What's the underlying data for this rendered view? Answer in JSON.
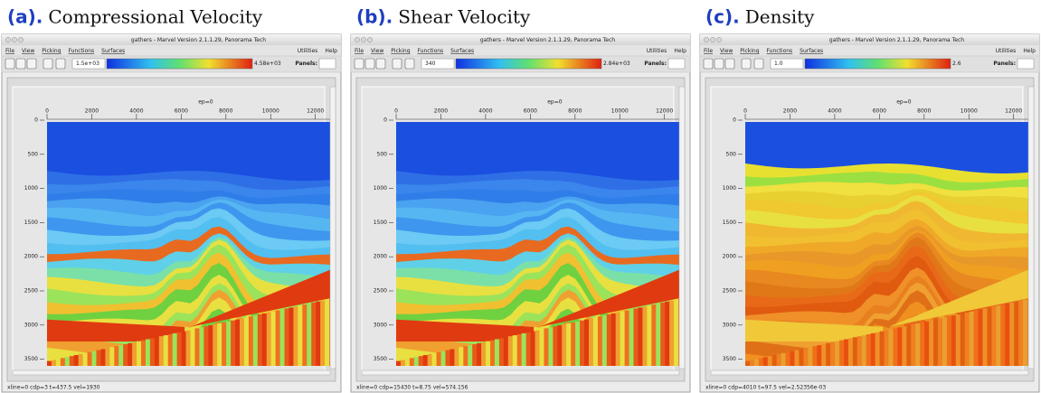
{
  "panels": [
    {
      "letter": "(a).",
      "title": "Compressional Velocity",
      "window_title": "gathers - Marvel Version 2.1.1.29, Panorama Tech",
      "menu": [
        "File",
        "View",
        "Picking",
        "Functions",
        "Surfaces"
      ],
      "menu_right": [
        "Utilities",
        "Help"
      ],
      "colorbar_min": "1.5e+03",
      "colorbar_max": "4.58e+03",
      "panels_label": "Panels:",
      "x_axis_label": "ep=0",
      "x_ticks": [
        0,
        2000,
        4000,
        6000,
        8000,
        10000,
        12000
      ],
      "y_ticks": [
        0,
        500,
        1000,
        1500,
        2000,
        2500,
        3000,
        3500
      ],
      "status": "xline=0 cdp=3 t=437.5 vel=1930"
    },
    {
      "letter": "(b).",
      "title": "Shear Velocity",
      "window_title": "gathers - Marvel Version 2.1.1.29, Panorama Tech",
      "menu": [
        "File",
        "View",
        "Picking",
        "Functions",
        "Surfaces"
      ],
      "menu_right": [
        "Utilities",
        "Help"
      ],
      "colorbar_min": "340",
      "colorbar_max": "2.84e+03",
      "panels_label": "Panels:",
      "x_axis_label": "ep=0",
      "x_ticks": [
        0,
        2000,
        4000,
        6000,
        8000,
        10000,
        12000
      ],
      "y_ticks": [
        0,
        500,
        1000,
        1500,
        2000,
        2500,
        3000,
        3500
      ],
      "status": "xline=0 cdp=15430 t=8.75 vel=574.156"
    },
    {
      "letter": "(c).",
      "title": "Density",
      "window_title": "gathers - Marvel Version 2.1.1.29, Panorama Tech",
      "menu": [
        "File",
        "View",
        "Picking",
        "Functions",
        "Surfaces"
      ],
      "menu_right": [
        "Utilities",
        "Help"
      ],
      "colorbar_min": "1.0",
      "colorbar_max": "2.6",
      "panels_label": "Panels:",
      "x_axis_label": "ep=0",
      "x_ticks": [
        0,
        2000,
        4000,
        6000,
        8000,
        10000,
        12000
      ],
      "y_ticks": [
        0,
        500,
        1000,
        1500,
        2000,
        2500,
        3000,
        3500
      ],
      "status": "xline=0 cdp=4010 t=97.5 vel=2.52356e-03"
    }
  ]
}
